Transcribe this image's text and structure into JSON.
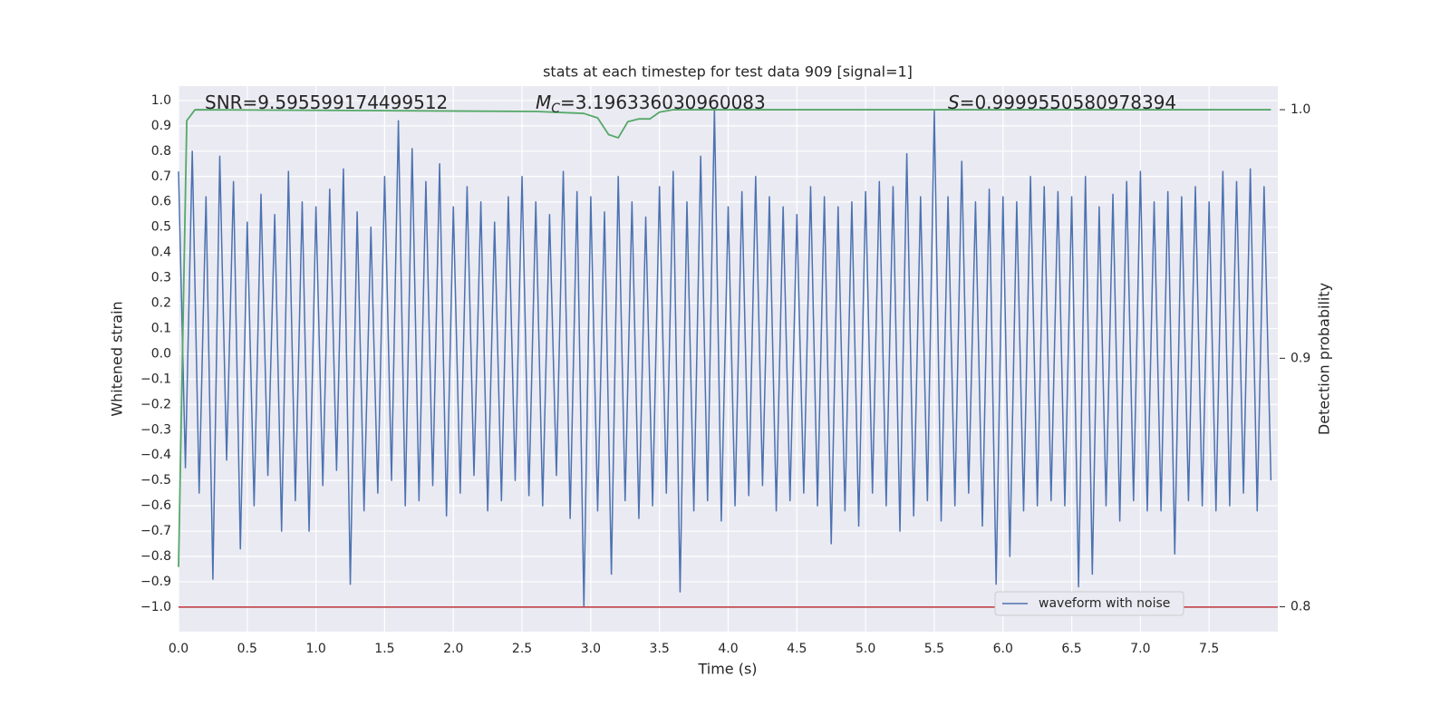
{
  "chart_data": {
    "type": "line",
    "title": "stats at each timestep for test data 909 [signal=1]",
    "xlabel": "Time (s)",
    "ylabel": "Whitened strain",
    "y2label": "Detection probability",
    "annotations": [
      {
        "text": "SNR=9.595599174499512"
      },
      {
        "symbol": "M",
        "subscript": "C",
        "text": "=3.196336030960083"
      },
      {
        "symbol": "S",
        "text": "=0.9999550580978394"
      }
    ],
    "xlim": [
      0,
      8.0
    ],
    "ylim": [
      -1.097,
      1.057
    ],
    "y2lim": [
      0.79,
      1.0095
    ],
    "xticks": [
      {
        "value": 0,
        "label": "0.0"
      },
      {
        "value": 0.5,
        "label": "0.5"
      },
      {
        "value": 1,
        "label": "1.0"
      },
      {
        "value": 1.5,
        "label": "1.5"
      },
      {
        "value": 2,
        "label": "2.0"
      },
      {
        "value": 2.5,
        "label": "2.5"
      },
      {
        "value": 3,
        "label": "3.0"
      },
      {
        "value": 3.5,
        "label": "3.5"
      },
      {
        "value": 4,
        "label": "4.0"
      },
      {
        "value": 4.5,
        "label": "4.5"
      },
      {
        "value": 5,
        "label": "5.0"
      },
      {
        "value": 5.5,
        "label": "5.5"
      },
      {
        "value": 6,
        "label": "6.0"
      },
      {
        "value": 6.5,
        "label": "6.5"
      },
      {
        "value": 7,
        "label": "7.0"
      },
      {
        "value": 7.5,
        "label": "7.5"
      }
    ],
    "yticks": [
      {
        "value": -1.0,
        "label": "−1.0"
      },
      {
        "value": -0.9,
        "label": "−0.9"
      },
      {
        "value": -0.8,
        "label": "−0.8"
      },
      {
        "value": -0.7,
        "label": "−0.7"
      },
      {
        "value": -0.6,
        "label": "−0.6"
      },
      {
        "value": -0.5,
        "label": "−0.5"
      },
      {
        "value": -0.4,
        "label": "−0.4"
      },
      {
        "value": -0.3,
        "label": "−0.3"
      },
      {
        "value": -0.2,
        "label": "−0.2"
      },
      {
        "value": -0.1,
        "label": "−0.1"
      },
      {
        "value": 0,
        "label": "0.0"
      },
      {
        "value": 0.1,
        "label": "0.1"
      },
      {
        "value": 0.2,
        "label": "0.2"
      },
      {
        "value": 0.3,
        "label": "0.3"
      },
      {
        "value": 0.4,
        "label": "0.4"
      },
      {
        "value": 0.5,
        "label": "0.5"
      },
      {
        "value": 0.6,
        "label": "0.6"
      },
      {
        "value": 0.7,
        "label": "0.7"
      },
      {
        "value": 0.8,
        "label": "0.8"
      },
      {
        "value": 0.9,
        "label": "0.9"
      },
      {
        "value": 1.0,
        "label": "1.0"
      }
    ],
    "y2ticks": [
      0.8,
      0.9,
      {
        "value": 1.0,
        "label": "1.0"
      }
    ],
    "grid": true,
    "legend": "lower right",
    "hlines": [
      {
        "value": -1.0,
        "color": "#c44e52"
      }
    ],
    "series": [
      {
        "name": "waveform with noise",
        "color": "#4c72b0",
        "x": [
          0,
          0.05,
          0.1,
          0.15,
          0.2,
          0.25,
          0.3,
          0.35,
          0.4,
          0.45,
          0.5,
          0.55,
          0.6,
          0.65,
          0.7,
          0.75,
          0.8,
          0.85,
          0.9,
          0.95,
          1,
          1.05,
          1.1,
          1.15,
          1.2,
          1.25,
          1.3,
          1.35,
          1.4,
          1.45,
          1.5,
          1.55,
          1.6,
          1.65,
          1.7,
          1.75,
          1.8,
          1.85,
          1.9,
          1.95,
          2,
          2.05,
          2.1,
          2.15,
          2.2,
          2.25,
          2.3,
          2.35,
          2.4,
          2.45,
          2.5,
          2.55,
          2.6,
          2.65,
          2.7,
          2.75,
          2.8,
          2.85,
          2.9,
          2.95,
          3,
          3.05,
          3.1,
          3.15,
          3.2,
          3.25,
          3.3,
          3.35,
          3.4,
          3.45,
          3.5,
          3.55,
          3.6,
          3.65,
          3.7,
          3.75,
          3.8,
          3.85,
          3.9,
          3.95,
          4,
          4.05,
          4.1,
          4.15,
          4.2,
          4.25,
          4.3,
          4.35,
          4.4,
          4.45,
          4.5,
          4.55,
          4.6,
          4.65,
          4.7,
          4.75,
          4.8,
          4.85,
          4.9,
          4.95,
          5,
          5.05,
          5.1,
          5.15,
          5.2,
          5.25,
          5.3,
          5.35,
          5.4,
          5.45,
          5.5,
          5.55,
          5.6,
          5.65,
          5.7,
          5.75,
          5.8,
          5.85,
          5.9,
          5.95,
          6,
          6.05,
          6.1,
          6.15,
          6.2,
          6.25,
          6.3,
          6.35,
          6.4,
          6.45,
          6.5,
          6.55,
          6.6,
          6.65,
          6.7,
          6.75,
          6.8,
          6.85,
          6.9,
          6.95,
          7,
          7.05,
          7.1,
          7.15,
          7.2,
          7.25,
          7.3,
          7.35,
          7.4,
          7.45,
          7.5,
          7.55,
          7.6,
          7.65,
          7.7,
          7.75,
          7.8,
          7.85,
          7.9,
          7.95
        ],
        "values": [
          0.72,
          -0.45,
          0.8,
          -0.55,
          0.62,
          -0.89,
          0.78,
          -0.42,
          0.68,
          -0.77,
          0.52,
          -0.6,
          0.63,
          -0.48,
          0.55,
          -0.7,
          0.72,
          -0.58,
          0.6,
          -0.7,
          0.58,
          -0.52,
          0.65,
          -0.46,
          0.73,
          -0.91,
          0.56,
          -0.62,
          0.5,
          -0.55,
          0.7,
          -0.5,
          0.92,
          -0.6,
          0.81,
          -0.58,
          0.68,
          -0.52,
          0.75,
          -0.64,
          0.58,
          -0.55,
          0.66,
          -0.48,
          0.6,
          -0.62,
          0.52,
          -0.58,
          0.62,
          -0.5,
          0.7,
          -0.56,
          0.6,
          -0.6,
          0.55,
          -0.48,
          0.72,
          -0.65,
          0.64,
          -1.0,
          0.62,
          -0.62,
          0.56,
          -0.87,
          0.7,
          -0.58,
          0.6,
          -0.65,
          0.54,
          -0.6,
          0.66,
          -0.55,
          0.72,
          -0.94,
          0.6,
          -0.62,
          0.78,
          -0.58,
          0.97,
          -0.66,
          0.58,
          -0.6,
          0.64,
          -0.56,
          0.7,
          -0.52,
          0.62,
          -0.62,
          0.58,
          -0.58,
          0.55,
          -0.55,
          0.66,
          -0.6,
          0.62,
          -0.75,
          0.58,
          -0.62,
          0.6,
          -0.68,
          0.64,
          -0.55,
          0.68,
          -0.6,
          0.66,
          -0.7,
          0.79,
          -0.64,
          0.62,
          -0.58,
          0.96,
          -0.66,
          0.62,
          -0.6,
          0.76,
          -0.55,
          0.6,
          -0.68,
          0.65,
          -0.91,
          0.62,
          -0.8,
          0.6,
          -0.62,
          0.7,
          -0.6,
          0.66,
          -0.58,
          0.64,
          -0.6,
          0.62,
          -0.92,
          0.7,
          -0.87,
          0.58,
          -0.6,
          0.63,
          -0.66,
          0.68,
          -0.58,
          0.72,
          -0.62,
          0.6,
          -0.62,
          0.64,
          -0.79,
          0.62,
          -0.58,
          0.66,
          -0.6,
          0.6,
          -0.62,
          0.72,
          -0.6,
          0.68,
          -0.55,
          0.73,
          -0.62,
          0.66,
          -0.5
        ]
      },
      {
        "color": "#55a868",
        "axis": "y2",
        "x": [
          0,
          0.06,
          0.12,
          2.6,
          2.95,
          3.05,
          3.13,
          3.2,
          3.27,
          3.35,
          3.43,
          3.5,
          3.6,
          7.95
        ],
        "values": [
          0.816,
          0.9956,
          1.0,
          0.9993,
          0.9985,
          0.9967,
          0.99,
          0.9887,
          0.9952,
          0.9963,
          0.9963,
          0.999,
          1.0,
          1.0
        ]
      }
    ]
  }
}
